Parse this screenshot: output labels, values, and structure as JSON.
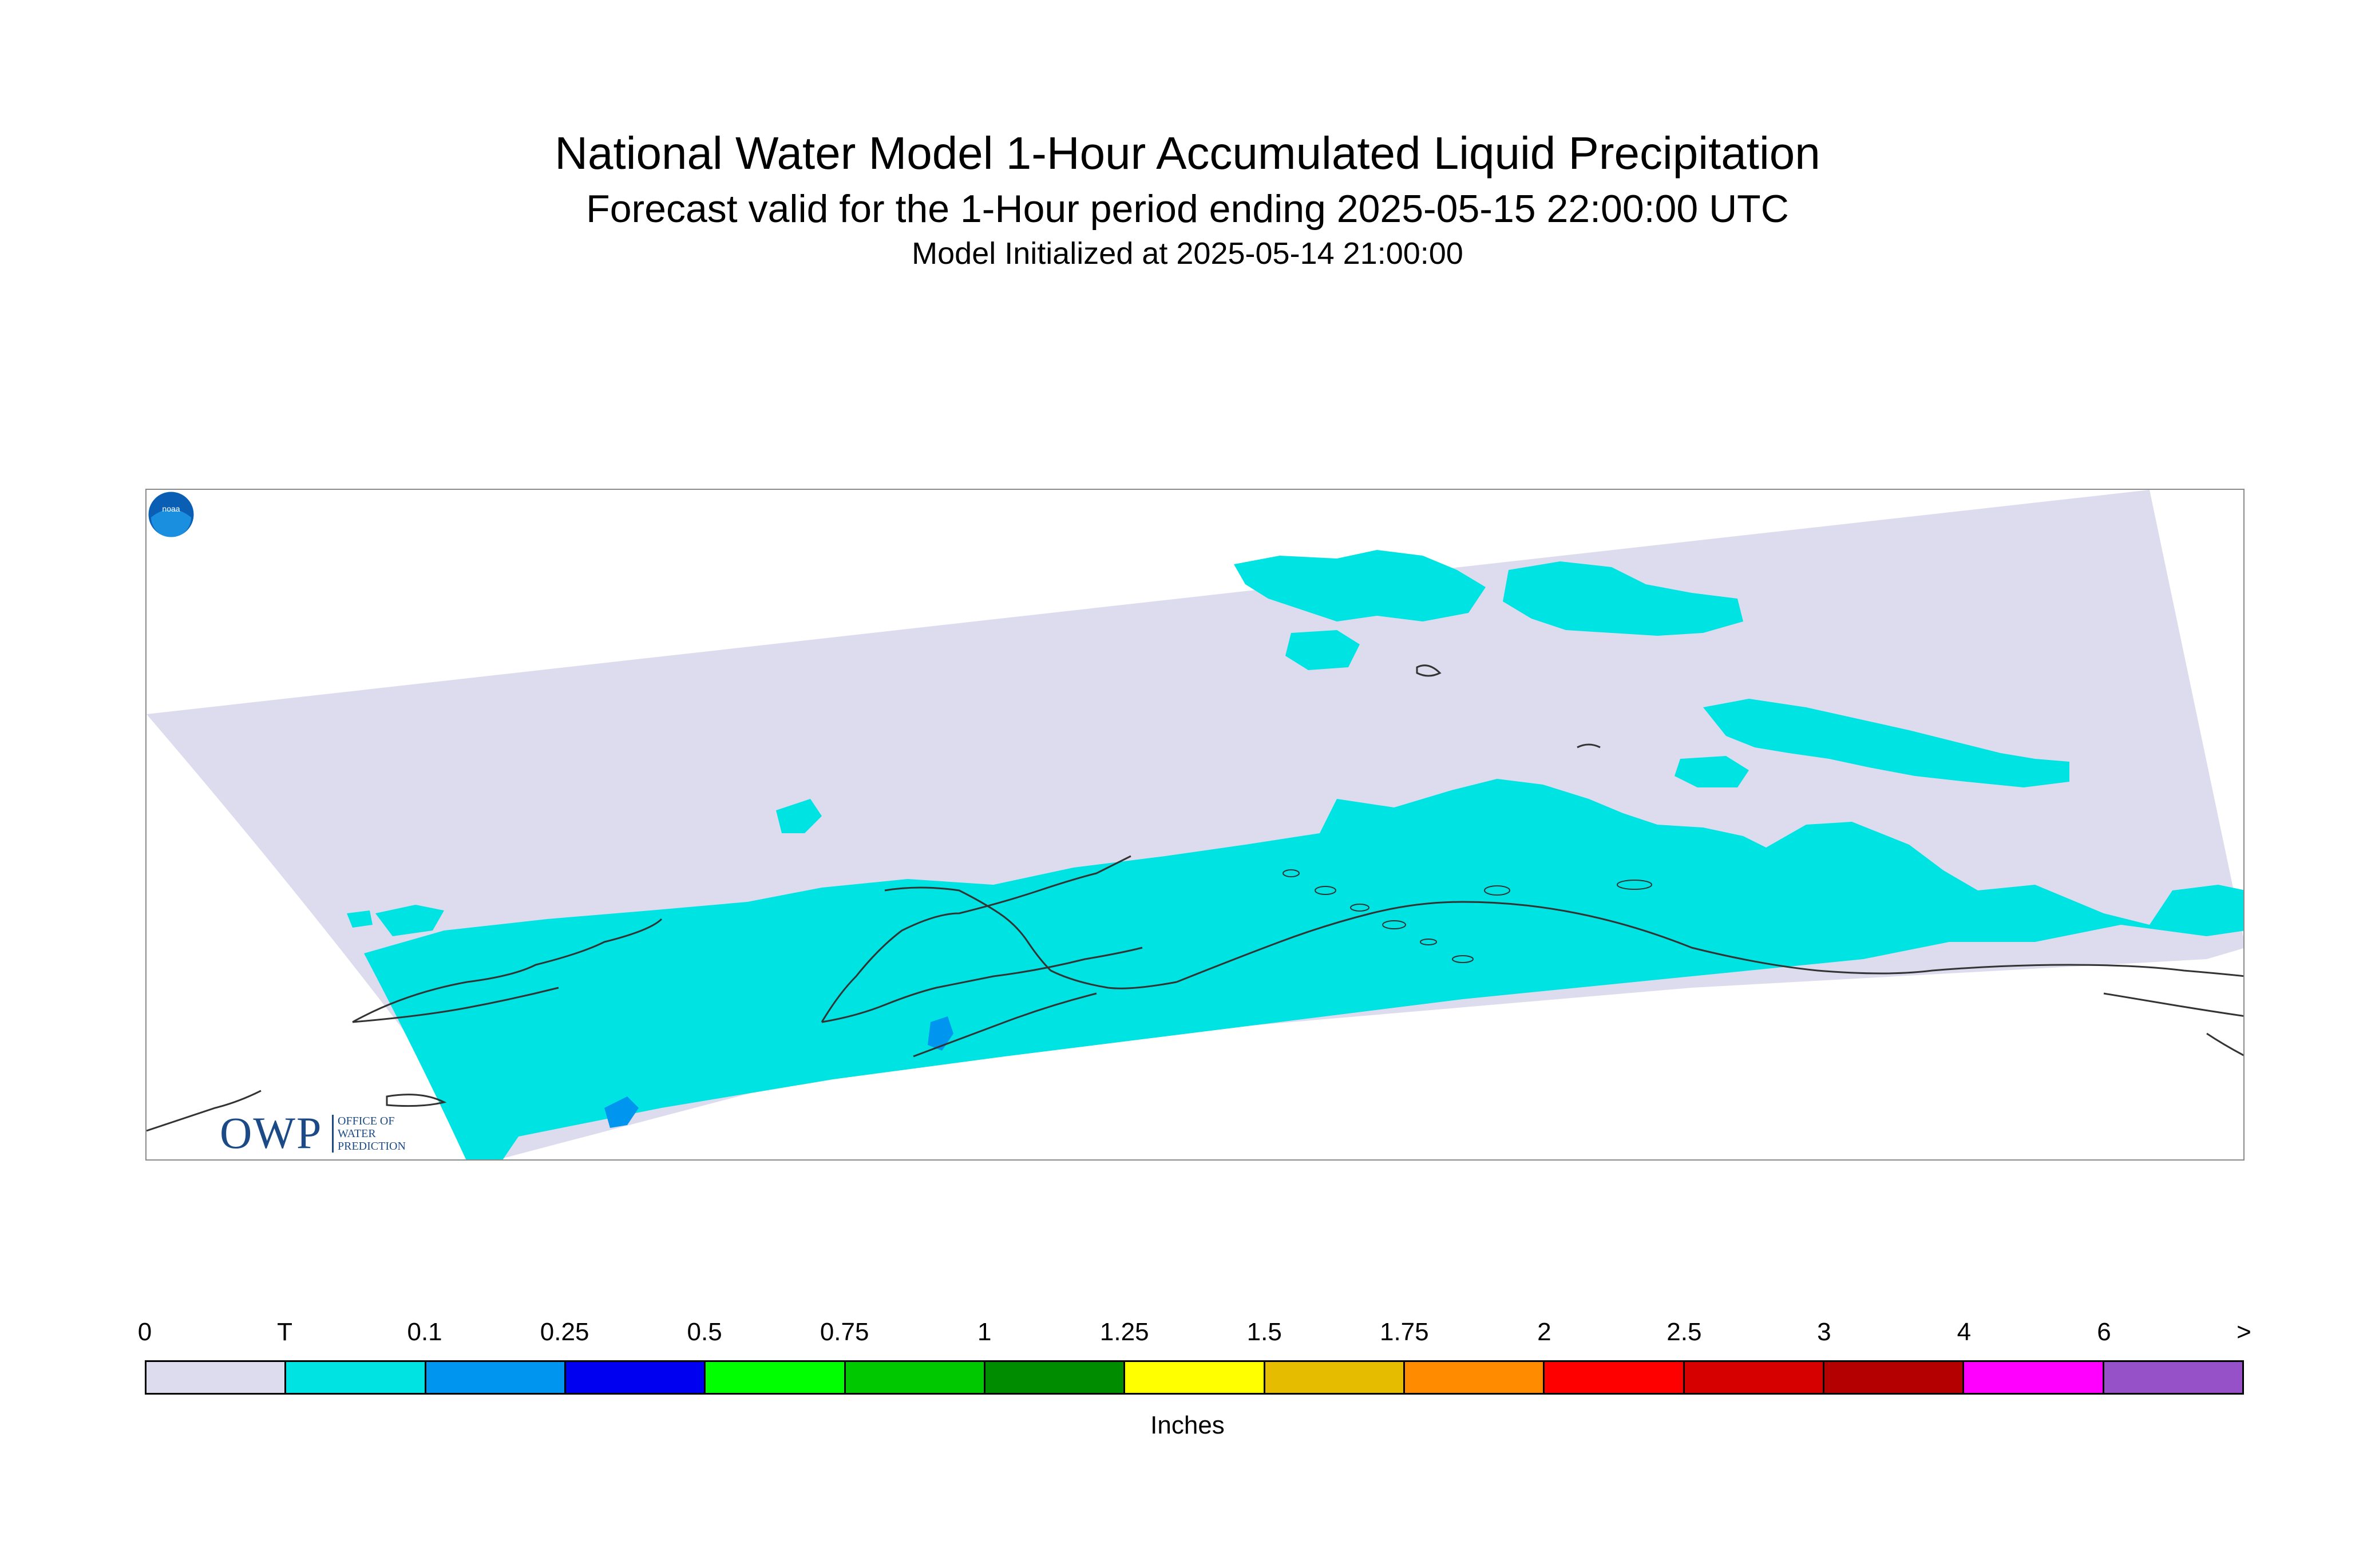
{
  "header": {
    "title": "National Water Model 1-Hour Accumulated Liquid Precipitation",
    "subtitle": "Forecast valid for the 1-Hour period ending 2025-05-15 22:00:00 UTC",
    "init_line": "Model Initialized at 2025-05-14 21:00:00"
  },
  "map": {
    "domain_fill": "#dcdcee",
    "precip_trace_color": "#00e3e3",
    "precip_light_color": "#0096f0",
    "coastline_color": "#333333"
  },
  "logos": {
    "owp": {
      "mark": "OWP",
      "line1": "OFFICE OF",
      "line2": "WATER",
      "line3": "PREDICTION"
    },
    "noaa": {
      "mark": "noaa",
      "icon": "noaa-logo-icon"
    }
  },
  "colorbar": {
    "labels": [
      "0",
      "T",
      "0.1",
      "0.25",
      "0.5",
      "0.75",
      "1",
      "1.25",
      "1.5",
      "1.75",
      "2",
      "2.5",
      "3",
      "4",
      "6",
      ">"
    ],
    "colors": [
      "#dcdcee",
      "#00e3e3",
      "#0096f0",
      "#0000f0",
      "#00ff00",
      "#00c800",
      "#008c00",
      "#ffff00",
      "#e6bc00",
      "#ff8c00",
      "#ff0000",
      "#d70000",
      "#b40000",
      "#ff00ff",
      "#9650c8"
    ],
    "units": "Inches"
  }
}
